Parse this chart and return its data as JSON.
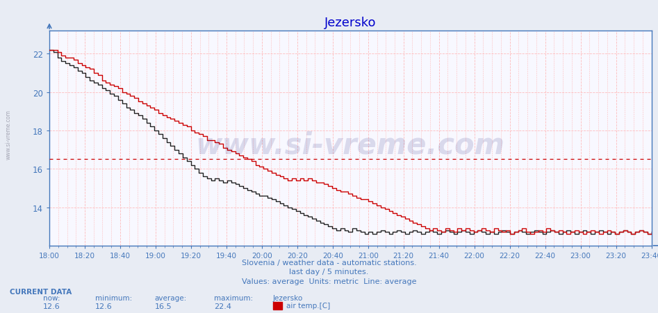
{
  "title": "Jezersko",
  "title_color": "#0000cc",
  "bg_color": "#e8ecf4",
  "plot_bg_color": "#f8f8ff",
  "line_color": "#cc0000",
  "line_color2": "#222222",
  "avg_line_color": "#cc0000",
  "avg_value": 16.5,
  "grid_color": "#ffbbbb",
  "x_tick_labels": [
    "18:00",
    "18:20",
    "18:40",
    "19:00",
    "19:20",
    "19:40",
    "20:00",
    "20:20",
    "20:40",
    "21:00",
    "21:20",
    "21:40",
    "22:00",
    "22:20",
    "22:40",
    "23:00",
    "23:20",
    "23:40"
  ],
  "y_min": 12.0,
  "y_max": 23.2,
  "y_ticks": [
    14,
    16,
    18,
    20,
    22
  ],
  "axis_color": "#4477bb",
  "tick_color": "#4477bb",
  "watermark_text": "www.si-vreme.com",
  "watermark_color": "#000066",
  "watermark_alpha": 0.12,
  "footer_line1": "Slovenia / weather data - automatic stations.",
  "footer_line2": "last day / 5 minutes.",
  "footer_line3": "Values: average  Units: metric  Line: average",
  "footer_color": "#4477bb",
  "current_data_label": "CURRENT DATA",
  "now_label": "now:",
  "min_label": "minimum:",
  "avg_label": "average:",
  "max_label": "maximum:",
  "station_label": "Jezersko",
  "now_val": "12.6",
  "min_val": "12.6",
  "avg_val": "16.5",
  "max_val": "22.4",
  "series_label": "air temp.[C]",
  "legend_color": "#cc0000",
  "temperatures": [
    22.2,
    22.2,
    22.1,
    21.9,
    21.8,
    21.8,
    21.7,
    21.5,
    21.4,
    21.3,
    21.2,
    21.0,
    20.9,
    20.6,
    20.5,
    20.4,
    20.3,
    20.2,
    20.0,
    19.9,
    19.8,
    19.7,
    19.5,
    19.4,
    19.3,
    19.2,
    19.1,
    18.9,
    18.8,
    18.7,
    18.6,
    18.5,
    18.4,
    18.3,
    18.2,
    18.0,
    17.9,
    17.8,
    17.7,
    17.5,
    17.5,
    17.4,
    17.3,
    17.1,
    17.0,
    16.9,
    16.8,
    16.7,
    16.6,
    16.5,
    16.4,
    16.2,
    16.1,
    16.0,
    15.9,
    15.8,
    15.7,
    15.6,
    15.5,
    15.4,
    15.5,
    15.4,
    15.5,
    15.4,
    15.5,
    15.4,
    15.3,
    15.3,
    15.2,
    15.1,
    15.0,
    14.9,
    14.8,
    14.8,
    14.7,
    14.6,
    14.5,
    14.4,
    14.4,
    14.3,
    14.2,
    14.1,
    14.0,
    13.9,
    13.8,
    13.7,
    13.6,
    13.5,
    13.4,
    13.3,
    13.2,
    13.1,
    13.0,
    12.9,
    12.8,
    12.9,
    12.8,
    12.7,
    12.9,
    12.8,
    12.7,
    12.9,
    12.8,
    12.9,
    12.8,
    12.7,
    12.8,
    12.9,
    12.8,
    12.7,
    12.9,
    12.8,
    12.7,
    12.8,
    12.6,
    12.7,
    12.8,
    12.9,
    12.7,
    12.6,
    12.7,
    12.8,
    12.7,
    12.9,
    12.8,
    12.7,
    12.8,
    12.7,
    12.6,
    12.7,
    12.8,
    12.7,
    12.6,
    12.7,
    12.8,
    12.7,
    12.6,
    12.7,
    12.8,
    12.7,
    12.6,
    12.7,
    12.8,
    12.7,
    12.6,
    12.7,
    12.8,
    12.7,
    12.6,
    12.7
  ],
  "temperatures2": [
    22.2,
    22.1,
    21.8,
    21.6,
    21.5,
    21.4,
    21.3,
    21.1,
    21.0,
    20.8,
    20.6,
    20.5,
    20.4,
    20.2,
    20.1,
    19.9,
    19.8,
    19.6,
    19.4,
    19.2,
    19.1,
    18.9,
    18.8,
    18.6,
    18.4,
    18.2,
    18.0,
    17.8,
    17.6,
    17.4,
    17.2,
    17.0,
    16.8,
    16.6,
    16.4,
    16.2,
    16.0,
    15.8,
    15.6,
    15.5,
    15.4,
    15.5,
    15.4,
    15.3,
    15.4,
    15.3,
    15.2,
    15.1,
    15.0,
    14.9,
    14.8,
    14.7,
    14.6,
    14.6,
    14.5,
    14.4,
    14.3,
    14.2,
    14.1,
    14.0,
    13.9,
    13.8,
    13.7,
    13.6,
    13.5,
    13.4,
    13.3,
    13.2,
    13.1,
    13.0,
    12.9,
    12.8,
    12.9,
    12.8,
    12.7,
    12.9,
    12.8,
    12.7,
    12.6,
    12.7,
    12.6,
    12.7,
    12.8,
    12.7,
    12.6,
    12.7,
    12.8,
    12.7,
    12.6,
    12.7,
    12.8,
    12.7,
    12.6,
    12.7,
    12.8,
    12.7,
    12.6,
    12.7,
    12.8,
    12.7,
    12.6,
    12.7,
    12.8,
    12.7,
    12.6,
    12.7,
    12.8,
    12.7,
    12.6,
    12.7,
    12.6,
    12.7,
    12.8,
    12.7,
    12.6,
    12.7,
    12.8,
    12.7,
    12.6,
    12.7,
    12.8,
    12.7,
    12.6,
    12.7,
    12.8,
    12.7,
    12.6,
    12.7,
    12.8,
    12.7,
    12.6,
    12.7,
    12.8,
    12.7,
    12.6,
    12.7,
    12.8,
    12.7,
    12.6,
    12.7,
    12.6,
    12.7,
    12.8,
    12.7,
    12.6,
    12.7,
    12.8,
    12.7,
    12.6,
    12.7
  ]
}
